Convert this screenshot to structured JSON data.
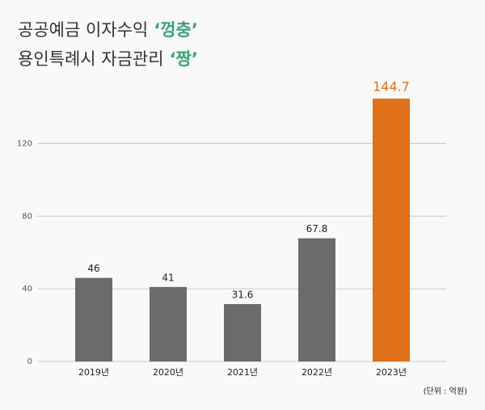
{
  "chart_data": {
    "type": "bar",
    "title_lines": [
      {
        "text": "공공예금 이자수익",
        "highlight": "‘껑충’"
      },
      {
        "text": "용인특례시 자금관리",
        "highlight": "‘짱’"
      }
    ],
    "unit_note": "(단위 : 억원)",
    "categories": [
      "2019년",
      "2020년",
      "2021년",
      "2022년",
      "2023년"
    ],
    "values": [
      46,
      41,
      31.6,
      67.8,
      144.7
    ],
    "colors": [
      "#6b6b6b",
      "#6b6b6b",
      "#6b6b6b",
      "#6b6b6b",
      "#e0701a"
    ],
    "ylim": [
      0,
      150
    ],
    "yticks": [
      0,
      40,
      80,
      120
    ],
    "grid": true
  }
}
